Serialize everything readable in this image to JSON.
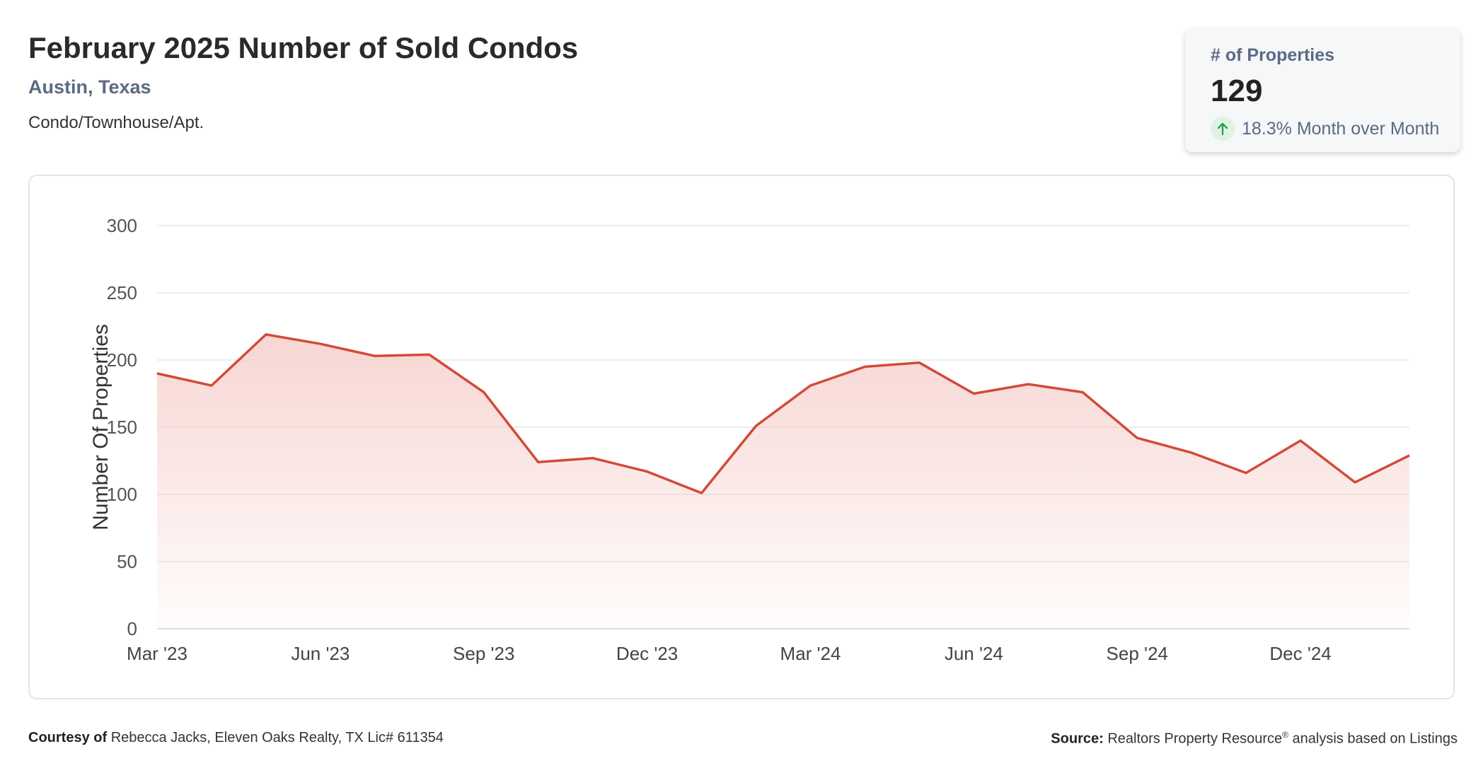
{
  "header": {
    "title": "February 2025 Number of Sold Condos",
    "location": "Austin, Texas",
    "property_type": "Condo/Townhouse/Apt."
  },
  "kpi": {
    "label": "# of Properties",
    "value": "129",
    "change": "18.3% Month over Month",
    "change_icon": "arrow-up-icon",
    "change_color": "#2e9e4f"
  },
  "footer": {
    "courtesy_label": "Courtesy of",
    "courtesy_text": "Rebecca Jacks, Eleven Oaks Realty, TX Lic# 611354",
    "source_label": "Source:",
    "source_text_1": "Realtors Property Resource",
    "source_reg": "®",
    "source_text_2": " analysis based on Listings"
  },
  "chart_data": {
    "type": "area",
    "ylabel": "Number Of Properties",
    "ylim": [
      0,
      300
    ],
    "yticks": [
      0,
      50,
      100,
      150,
      200,
      250,
      300
    ],
    "x": [
      "2023-03",
      "2023-04",
      "2023-05",
      "2023-06",
      "2023-07",
      "2023-08",
      "2023-09",
      "2023-10",
      "2023-11",
      "2023-12",
      "2024-01",
      "2024-02",
      "2024-03",
      "2024-04",
      "2024-05",
      "2024-06",
      "2024-07",
      "2024-08",
      "2024-09",
      "2024-10",
      "2024-11",
      "2024-12",
      "2025-01",
      "2025-02"
    ],
    "xtick_labels": [
      "Mar '23",
      "Jun '23",
      "Sep '23",
      "Dec '23",
      "Mar '24",
      "Jun '24",
      "Sep '24",
      "Dec '24"
    ],
    "series": [
      {
        "values": [
          190,
          181,
          219,
          212,
          203,
          204,
          176,
          124,
          127,
          117,
          101,
          151,
          181,
          195,
          198,
          175,
          182,
          176,
          142,
          131,
          116,
          140,
          109,
          129
        ]
      }
    ],
    "line_color": "#d24a3a",
    "fill_color": "#f6cfcb",
    "grid": true
  }
}
